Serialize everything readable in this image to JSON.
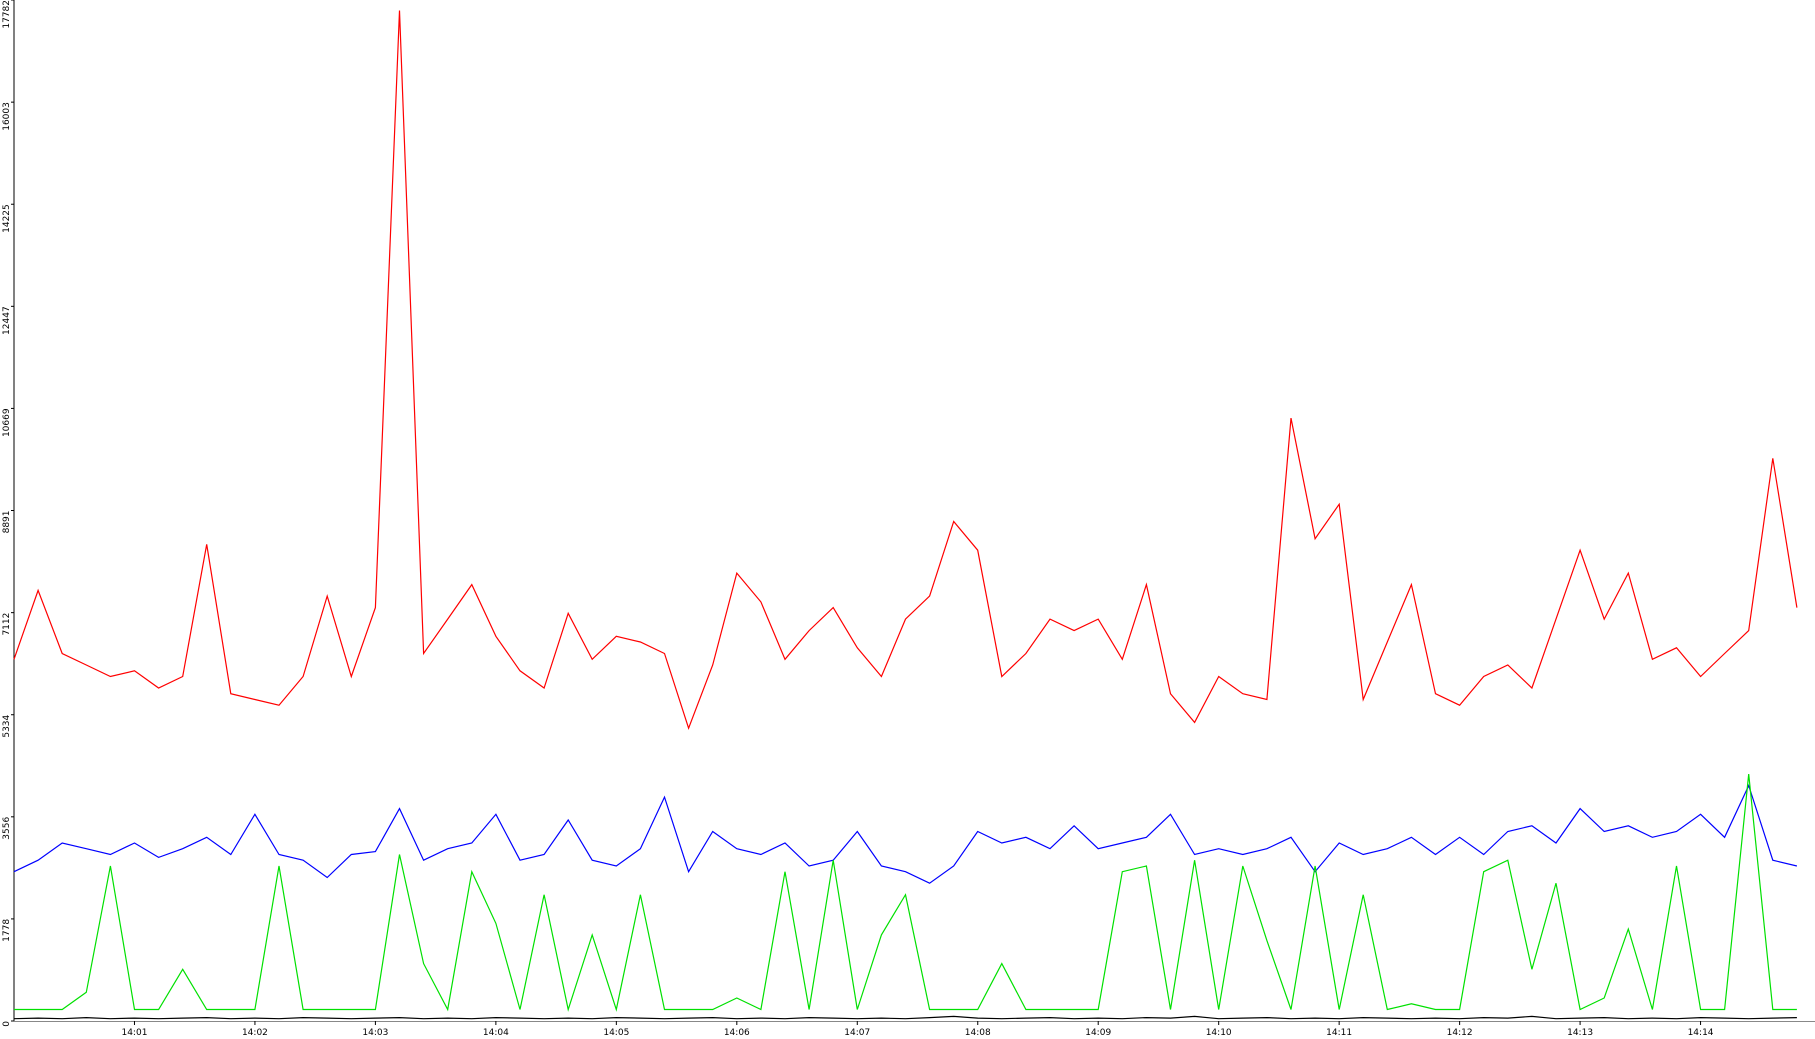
{
  "chart_data": {
    "type": "line",
    "x": [
      0,
      0.2,
      0.4,
      0.6,
      0.8,
      1,
      1.2,
      1.4,
      1.6,
      1.8,
      2,
      2.2,
      2.4,
      2.6,
      2.8,
      3,
      3.2,
      3.4,
      3.6,
      3.8,
      4,
      4.2,
      4.4,
      4.6,
      4.8,
      5,
      5.2,
      5.4,
      5.6,
      5.8,
      6,
      6.2,
      6.4,
      6.6,
      6.8,
      7,
      7.2,
      7.4,
      7.6,
      7.8,
      8,
      8.2,
      8.4,
      8.6,
      8.8,
      9,
      9.2,
      9.4,
      9.6,
      9.8,
      10,
      10.2,
      10.4,
      10.6,
      10.8,
      11,
      11.2,
      11.4,
      11.6,
      11.8,
      12,
      12.2,
      12.4,
      12.6,
      12.8,
      13,
      13.2,
      13.4,
      13.6,
      13.8,
      14,
      14.2,
      14.4,
      14.6,
      14.8
    ],
    "series": [
      {
        "color": "#ff0000",
        "values": [
          6300,
          7500,
          6400,
          6200,
          6000,
          6100,
          5800,
          6000,
          8300,
          5700,
          5600,
          5500,
          6000,
          7400,
          6000,
          7200,
          17600,
          6400,
          7000,
          7600,
          6700,
          6100,
          5800,
          7100,
          6300,
          6700,
          6600,
          6400,
          5100,
          6200,
          7800,
          7300,
          6300,
          6800,
          7200,
          6500,
          6000,
          7000,
          7400,
          8700,
          8200,
          6000,
          6400,
          7000,
          6800,
          7000,
          6300,
          7600,
          5700,
          5200,
          6000,
          5700,
          5600,
          10500,
          8400,
          9000,
          5600,
          6600,
          7600,
          5700,
          5500,
          6000,
          6200,
          5800,
          7000,
          8200,
          7000,
          7800,
          6300,
          6500,
          6000,
          6400,
          6800,
          9800,
          7200
        ]
      },
      {
        "color": "#0000ff",
        "values": [
          2600,
          2800,
          3100,
          3000,
          2900,
          3100,
          2850,
          3000,
          3200,
          2900,
          3600,
          2900,
          2800,
          2500,
          2900,
          2950,
          3700,
          2800,
          3000,
          3100,
          3600,
          2800,
          2900,
          3500,
          2800,
          2700,
          3000,
          3900,
          2600,
          3300,
          3000,
          2900,
          3100,
          2700,
          2800,
          3300,
          2700,
          2600,
          2400,
          2700,
          3300,
          3100,
          3200,
          3000,
          3400,
          3000,
          3100,
          3200,
          3600,
          2900,
          3000,
          2900,
          3000,
          3200,
          2600,
          3100,
          2900,
          3000,
          3200,
          2900,
          3200,
          2900,
          3300,
          3400,
          3100,
          3700,
          3300,
          3400,
          3200,
          3300,
          3600,
          3200,
          4100,
          2800,
          2700
        ]
      },
      {
        "color": "#00e000",
        "values": [
          200,
          200,
          200,
          500,
          2700,
          200,
          200,
          900,
          200,
          200,
          200,
          2700,
          200,
          200,
          200,
          200,
          2900,
          1000,
          200,
          2600,
          1700,
          200,
          2200,
          200,
          1500,
          200,
          2200,
          200,
          200,
          200,
          400,
          200,
          2600,
          200,
          2800,
          200,
          1500,
          2200,
          200,
          200,
          200,
          1000,
          200,
          200,
          200,
          200,
          2600,
          2700,
          200,
          2800,
          200,
          2700,
          1400,
          200,
          2700,
          200,
          2200,
          200,
          300,
          200,
          200,
          2600,
          2800,
          900,
          2400,
          200,
          400,
          1600,
          200,
          2700,
          200,
          200,
          4300,
          200,
          200
        ]
      },
      {
        "color": "#000000",
        "values": [
          40,
          50,
          40,
          60,
          40,
          50,
          40,
          50,
          60,
          40,
          50,
          40,
          60,
          50,
          40,
          50,
          60,
          40,
          50,
          40,
          60,
          50,
          40,
          50,
          40,
          60,
          50,
          40,
          50,
          60,
          40,
          50,
          40,
          60,
          50,
          40,
          50,
          40,
          60,
          80,
          50,
          40,
          50,
          60,
          40,
          50,
          40,
          60,
          50,
          80,
          40,
          50,
          60,
          40,
          50,
          40,
          60,
          50,
          40,
          50,
          40,
          60,
          50,
          80,
          40,
          50,
          60,
          40,
          50,
          40,
          60,
          50,
          40,
          50,
          60
        ]
      }
    ],
    "xlim": [
      0,
      14.95
    ],
    "xticks": [
      {
        "value": 1,
        "label": "14:01"
      },
      {
        "value": 2,
        "label": "14:02"
      },
      {
        "value": 3,
        "label": "14:03"
      },
      {
        "value": 4,
        "label": "14:04"
      },
      {
        "value": 5,
        "label": "14:05"
      },
      {
        "value": 6,
        "label": "14:06"
      },
      {
        "value": 7,
        "label": "14:07"
      },
      {
        "value": 8,
        "label": "14:08"
      },
      {
        "value": 9,
        "label": "14:09"
      },
      {
        "value": 10,
        "label": "14:10"
      },
      {
        "value": 11,
        "label": "14:11"
      },
      {
        "value": 12,
        "label": "14:12"
      },
      {
        "value": 13,
        "label": "14:13"
      },
      {
        "value": 14,
        "label": "14:14"
      }
    ],
    "ylim": [
      0,
      17782
    ],
    "yticks": [
      0,
      1778,
      3556,
      5334,
      7112,
      8891,
      10669,
      12447,
      14225,
      16003,
      17782
    ]
  }
}
